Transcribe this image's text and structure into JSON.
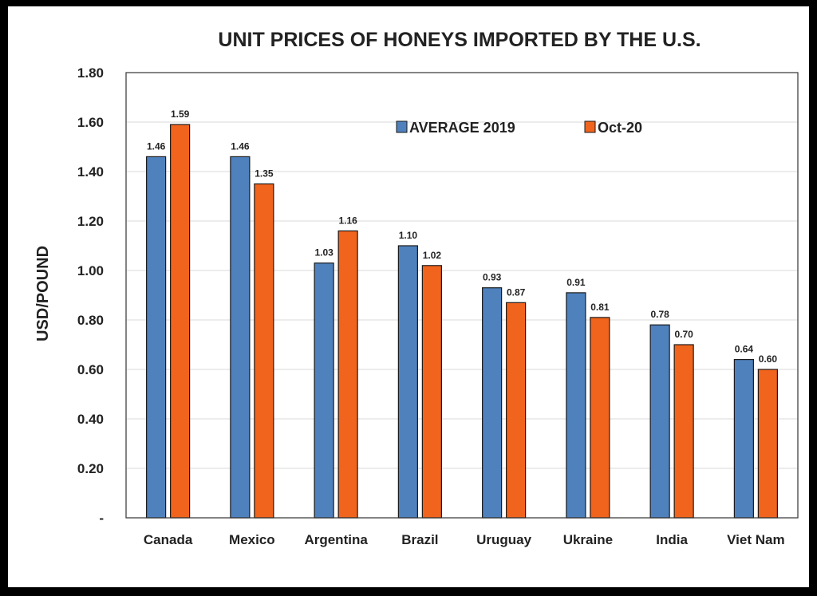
{
  "chart_data": {
    "type": "bar",
    "title": "UNIT PRICES OF HONEYS IMPORTED BY THE U.S.",
    "ylabel": "USD/POUND",
    "xlabel": "",
    "categories": [
      "Canada",
      "Mexico",
      "Argentina",
      "Brazil",
      "Uruguay",
      "Ukraine",
      "India",
      "Viet Nam"
    ],
    "series": [
      {
        "name": "AVERAGE 2019",
        "color": "#4f81bd",
        "values": [
          1.46,
          1.46,
          1.03,
          1.1,
          0.93,
          0.91,
          0.78,
          0.64
        ],
        "labels": [
          "1.46",
          "1.46",
          "1.03",
          "1.10",
          "0.93",
          "0.91",
          "0.78",
          "0.64"
        ]
      },
      {
        "name": "Oct-20",
        "color": "#f0641e",
        "values": [
          1.59,
          1.35,
          1.16,
          1.02,
          0.87,
          0.81,
          0.7,
          0.6
        ],
        "labels": [
          "1.59",
          "1.35",
          "1.16",
          "1.02",
          "0.87",
          "0.81",
          "0.70",
          "0.60"
        ]
      }
    ],
    "ylim": [
      0,
      1.8
    ],
    "yticks": [
      0,
      0.2,
      0.4,
      0.6,
      0.8,
      1.0,
      1.2,
      1.4,
      1.6,
      1.8
    ],
    "ytick_labels": [
      "-",
      "0.20",
      "0.40",
      "0.60",
      "0.80",
      "1.00",
      "1.20",
      "1.40",
      "1.60",
      "1.80"
    ],
    "grid": true,
    "legend_position": "top-right"
  }
}
